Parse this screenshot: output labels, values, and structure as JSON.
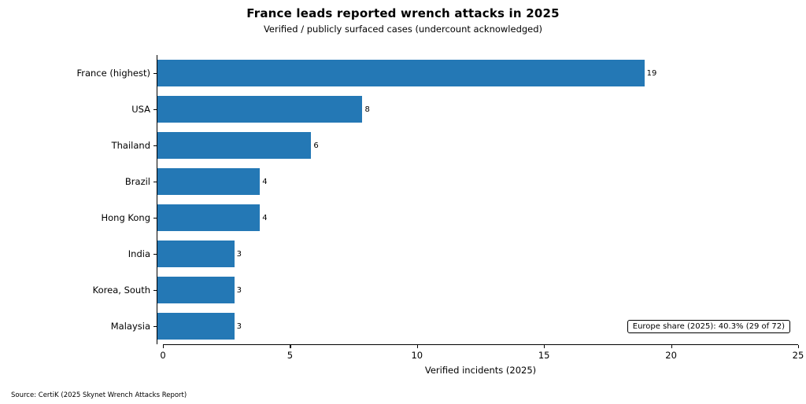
{
  "chart_data": {
    "type": "bar",
    "orientation": "horizontal",
    "title": "France leads reported wrench attacks in 2025",
    "subtitle": "Verified / publicly surfaced cases (undercount acknowledged)",
    "categories": [
      "France (highest)",
      "USA",
      "Thailand",
      "Brazil",
      "Hong Kong",
      "India",
      "Korea, South",
      "Malaysia"
    ],
    "values": [
      19,
      8,
      6,
      4,
      4,
      3,
      3,
      3
    ],
    "xlabel": "Verified incidents (2025)",
    "xlim": [
      0,
      25
    ],
    "xticks": [
      0,
      5,
      10,
      15,
      20,
      25
    ],
    "bar_color": "#2478b5",
    "grid": false,
    "legend": "none",
    "annotation": "Europe share (2025): 40.3% (29 of 72)",
    "source": "Source: CertiK (2025 Skynet Wrench Attacks Report)"
  }
}
